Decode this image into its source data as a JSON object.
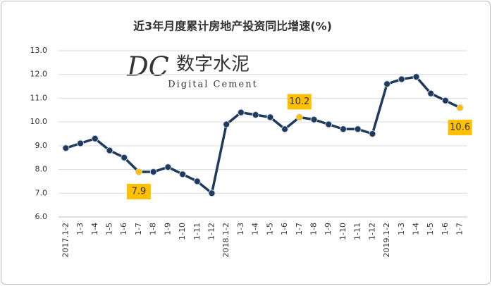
{
  "chart_data": {
    "type": "line",
    "title": "近3年月度累计房地产投资同比增速(%)",
    "watermark": {
      "logo": "DC",
      "name": "数字水泥",
      "subtitle": "Digital Cement"
    },
    "categories": [
      "2017.1-2",
      "1-3",
      "1-4",
      "1-5",
      "1-6",
      "1-7",
      "1-8",
      "1-9",
      "1-10",
      "1-11",
      "1-12",
      "2018.1-2",
      "1-3",
      "1-4",
      "1-5",
      "1-6",
      "1-7",
      "1-8",
      "1-9",
      "1-10",
      "1-11",
      "1-12",
      "2019.1-2",
      "1-3",
      "1-4",
      "1-5",
      "1-6",
      "1-7"
    ],
    "series": [
      {
        "name": "同比增速",
        "color": "#1f3a5c",
        "highlight_color": "#ffc000",
        "values": [
          8.9,
          9.1,
          9.3,
          8.8,
          8.5,
          7.9,
          7.9,
          8.1,
          7.8,
          7.5,
          7.0,
          9.9,
          10.4,
          10.3,
          10.2,
          9.7,
          10.2,
          10.1,
          9.9,
          9.7,
          9.7,
          9.5,
          11.6,
          11.8,
          11.9,
          11.2,
          10.9,
          10.6
        ]
      }
    ],
    "labeled_points": [
      {
        "index": 5,
        "position": "below"
      },
      {
        "index": 16,
        "position": "above"
      },
      {
        "index": 27,
        "position": "below"
      }
    ],
    "ylim": [
      6,
      13
    ],
    "yticks": [
      {
        "value": 6,
        "label": "6.0"
      },
      {
        "value": 7,
        "label": "7.0"
      },
      {
        "value": 8,
        "label": "8.0"
      },
      {
        "value": 9,
        "label": "9.0"
      },
      {
        "value": 10,
        "label": "10.0"
      },
      {
        "value": 11,
        "label": "11.0"
      },
      {
        "value": 12,
        "label": "12.0"
      },
      {
        "value": 13,
        "label": "13.0"
      }
    ],
    "grid": true
  }
}
